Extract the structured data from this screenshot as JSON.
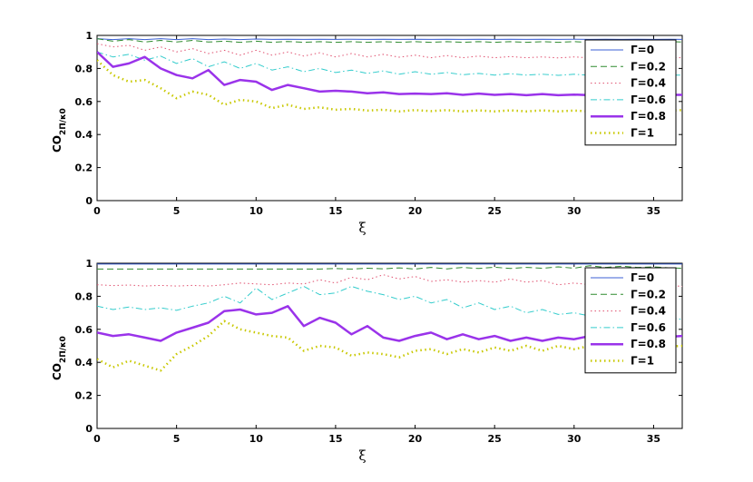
{
  "chart_data": [
    {
      "type": "line",
      "xlabel": "ξ",
      "ylabel": "CO2Π/κ0",
      "ylabel_main": "CO",
      "ylabel_sub": "2Π/κ0",
      "xlim": [
        0,
        36.8
      ],
      "ylim": [
        0,
        1
      ],
      "xticks": [
        "0",
        "5",
        "10",
        "15",
        "20",
        "25",
        "30",
        "35"
      ],
      "yticks": [
        "0",
        "0.2",
        "0.4",
        "0.6",
        "0.8",
        "1"
      ],
      "grid": false,
      "legend_position": "top-right",
      "x": [
        0,
        1,
        2,
        3,
        4,
        5,
        6,
        7,
        8,
        9,
        10,
        11,
        12,
        13,
        14,
        15,
        16,
        17,
        18,
        19,
        20,
        21,
        22,
        23,
        24,
        25,
        26,
        27,
        28,
        29,
        30,
        31,
        32,
        33,
        34,
        35,
        36,
        36.8
      ],
      "series": [
        {
          "name": "Γ=0",
          "color": "#3b5fd4",
          "dash": "solid",
          "width": 1,
          "values": [
            0.98,
            0.975,
            0.98,
            0.975,
            0.98,
            0.975,
            0.98,
            0.975,
            0.978,
            0.975,
            0.978,
            0.976,
            0.977,
            0.976,
            0.977,
            0.976,
            0.977,
            0.976,
            0.977,
            0.976,
            0.977,
            0.976,
            0.977,
            0.976,
            0.977,
            0.976,
            0.977,
            0.976,
            0.977,
            0.976,
            0.977,
            0.976,
            0.977,
            0.976,
            0.977,
            0.976,
            0.977,
            0.976
          ]
        },
        {
          "name": "Γ=0.2",
          "color": "#2e8b2e",
          "dash": "dashed",
          "width": 1,
          "values": [
            0.98,
            0.965,
            0.975,
            0.96,
            0.97,
            0.96,
            0.97,
            0.96,
            0.965,
            0.958,
            0.965,
            0.958,
            0.963,
            0.958,
            0.962,
            0.958,
            0.962,
            0.958,
            0.962,
            0.958,
            0.962,
            0.958,
            0.962,
            0.958,
            0.962,
            0.958,
            0.962,
            0.958,
            0.962,
            0.958,
            0.962,
            0.958,
            0.962,
            0.958,
            0.962,
            0.958,
            0.962,
            0.96
          ]
        },
        {
          "name": "Γ=0.4",
          "color": "#e0506f",
          "dash": "dotted",
          "width": 1,
          "values": [
            0.95,
            0.93,
            0.94,
            0.91,
            0.93,
            0.9,
            0.92,
            0.89,
            0.91,
            0.88,
            0.91,
            0.88,
            0.9,
            0.875,
            0.895,
            0.87,
            0.89,
            0.87,
            0.885,
            0.868,
            0.88,
            0.865,
            0.878,
            0.865,
            0.875,
            0.865,
            0.872,
            0.865,
            0.87,
            0.864,
            0.87,
            0.864,
            0.868,
            0.864,
            0.868,
            0.864,
            0.866,
            0.865
          ]
        },
        {
          "name": "Γ=0.6",
          "color": "#33cccc",
          "dash": "dashdot",
          "width": 1,
          "values": [
            0.9,
            0.87,
            0.885,
            0.85,
            0.875,
            0.83,
            0.86,
            0.81,
            0.84,
            0.8,
            0.83,
            0.79,
            0.81,
            0.78,
            0.8,
            0.775,
            0.79,
            0.77,
            0.785,
            0.765,
            0.78,
            0.765,
            0.775,
            0.762,
            0.77,
            0.76,
            0.768,
            0.76,
            0.765,
            0.758,
            0.765,
            0.758,
            0.762,
            0.758,
            0.762,
            0.758,
            0.76,
            0.76
          ]
        },
        {
          "name": "Γ=0.8",
          "color": "#9a33ea",
          "dash": "solid",
          "width": 2.5,
          "values": [
            0.9,
            0.81,
            0.83,
            0.87,
            0.8,
            0.76,
            0.74,
            0.79,
            0.7,
            0.73,
            0.72,
            0.67,
            0.7,
            0.68,
            0.66,
            0.665,
            0.66,
            0.65,
            0.655,
            0.645,
            0.648,
            0.645,
            0.65,
            0.64,
            0.648,
            0.64,
            0.645,
            0.638,
            0.645,
            0.638,
            0.642,
            0.638,
            0.642,
            0.638,
            0.642,
            0.638,
            0.64,
            0.64
          ]
        },
        {
          "name": "Γ=1",
          "color": "#c8c800",
          "dash": "dotted",
          "width": 2.5,
          "values": [
            0.85,
            0.76,
            0.72,
            0.73,
            0.68,
            0.62,
            0.66,
            0.64,
            0.58,
            0.61,
            0.6,
            0.56,
            0.58,
            0.555,
            0.565,
            0.55,
            0.555,
            0.545,
            0.55,
            0.54,
            0.548,
            0.542,
            0.548,
            0.54,
            0.546,
            0.54,
            0.546,
            0.54,
            0.546,
            0.54,
            0.545,
            0.54,
            0.545,
            0.54,
            0.545,
            0.54,
            0.545,
            0.548
          ]
        }
      ]
    },
    {
      "type": "line",
      "xlabel": "ξ",
      "ylabel": "CO2Π/κ0",
      "ylabel_main": "CO",
      "ylabel_sub": "2Π/κ0",
      "xlim": [
        0,
        36.8
      ],
      "ylim": [
        0,
        1
      ],
      "xticks": [
        "0",
        "5",
        "10",
        "15",
        "20",
        "25",
        "30",
        "35"
      ],
      "yticks": [
        "0",
        "0.2",
        "0.4",
        "0.6",
        "0.8",
        "1"
      ],
      "grid": false,
      "legend_position": "top-right",
      "x": [
        0,
        1,
        2,
        3,
        4,
        5,
        6,
        7,
        8,
        9,
        10,
        11,
        12,
        13,
        14,
        15,
        16,
        17,
        18,
        19,
        20,
        21,
        22,
        23,
        24,
        25,
        26,
        27,
        28,
        29,
        30,
        31,
        32,
        33,
        34,
        35,
        36,
        36.8
      ],
      "series": [
        {
          "name": "Γ=0",
          "color": "#3b5fd4",
          "dash": "solid",
          "width": 1,
          "values": [
            0.995,
            0.995,
            0.995,
            0.995,
            0.995,
            0.995,
            0.995,
            0.995,
            0.995,
            0.995,
            0.995,
            0.995,
            0.995,
            0.995,
            0.995,
            0.995,
            0.995,
            0.995,
            0.995,
            0.995,
            0.995,
            0.995,
            0.995,
            0.995,
            0.995,
            0.995,
            0.995,
            0.995,
            0.995,
            0.995,
            0.995,
            0.995,
            0.995,
            0.995,
            0.995,
            0.995,
            0.995,
            0.995
          ]
        },
        {
          "name": "Γ=0.2",
          "color": "#2e8b2e",
          "dash": "dashed",
          "width": 1,
          "values": [
            0.965,
            0.965,
            0.965,
            0.965,
            0.965,
            0.965,
            0.965,
            0.965,
            0.965,
            0.965,
            0.965,
            0.965,
            0.965,
            0.965,
            0.965,
            0.968,
            0.965,
            0.97,
            0.966,
            0.972,
            0.965,
            0.975,
            0.966,
            0.975,
            0.968,
            0.976,
            0.968,
            0.975,
            0.97,
            0.978,
            0.97,
            0.985,
            0.975,
            0.982,
            0.975,
            0.978,
            0.972,
            0.97
          ]
        },
        {
          "name": "Γ=0.4",
          "color": "#e0506f",
          "dash": "dotted",
          "width": 1,
          "values": [
            0.87,
            0.865,
            0.868,
            0.862,
            0.866,
            0.862,
            0.866,
            0.862,
            0.87,
            0.88,
            0.875,
            0.87,
            0.88,
            0.875,
            0.9,
            0.88,
            0.915,
            0.9,
            0.93,
            0.905,
            0.92,
            0.89,
            0.9,
            0.885,
            0.895,
            0.885,
            0.905,
            0.885,
            0.895,
            0.87,
            0.88,
            0.87,
            0.88,
            0.865,
            0.875,
            0.86,
            0.865,
            0.86
          ]
        },
        {
          "name": "Γ=0.6",
          "color": "#33cccc",
          "dash": "dashdot",
          "width": 1,
          "values": [
            0.74,
            0.72,
            0.735,
            0.72,
            0.73,
            0.715,
            0.74,
            0.76,
            0.8,
            0.76,
            0.85,
            0.78,
            0.82,
            0.86,
            0.81,
            0.82,
            0.86,
            0.83,
            0.81,
            0.78,
            0.8,
            0.76,
            0.78,
            0.73,
            0.76,
            0.72,
            0.74,
            0.7,
            0.72,
            0.69,
            0.7,
            0.68,
            0.69,
            0.67,
            0.68,
            0.665,
            0.67,
            0.66
          ]
        },
        {
          "name": "Γ=0.8",
          "color": "#9a33ea",
          "dash": "solid",
          "width": 2.5,
          "values": [
            0.58,
            0.56,
            0.57,
            0.55,
            0.53,
            0.58,
            0.61,
            0.64,
            0.71,
            0.72,
            0.69,
            0.7,
            0.74,
            0.62,
            0.67,
            0.64,
            0.57,
            0.62,
            0.55,
            0.53,
            0.56,
            0.58,
            0.54,
            0.57,
            0.54,
            0.56,
            0.53,
            0.55,
            0.53,
            0.55,
            0.54,
            0.56,
            0.54,
            0.56,
            0.55,
            0.56,
            0.555,
            0.56
          ]
        },
        {
          "name": "Γ=1",
          "color": "#c8c800",
          "dash": "dotted",
          "width": 2.5,
          "values": [
            0.42,
            0.37,
            0.41,
            0.38,
            0.35,
            0.45,
            0.5,
            0.56,
            0.65,
            0.6,
            0.58,
            0.56,
            0.55,
            0.47,
            0.5,
            0.49,
            0.44,
            0.46,
            0.45,
            0.43,
            0.47,
            0.48,
            0.45,
            0.48,
            0.46,
            0.49,
            0.47,
            0.5,
            0.47,
            0.5,
            0.48,
            0.5,
            0.48,
            0.5,
            0.49,
            0.5,
            0.495,
            0.5
          ]
        }
      ]
    }
  ]
}
